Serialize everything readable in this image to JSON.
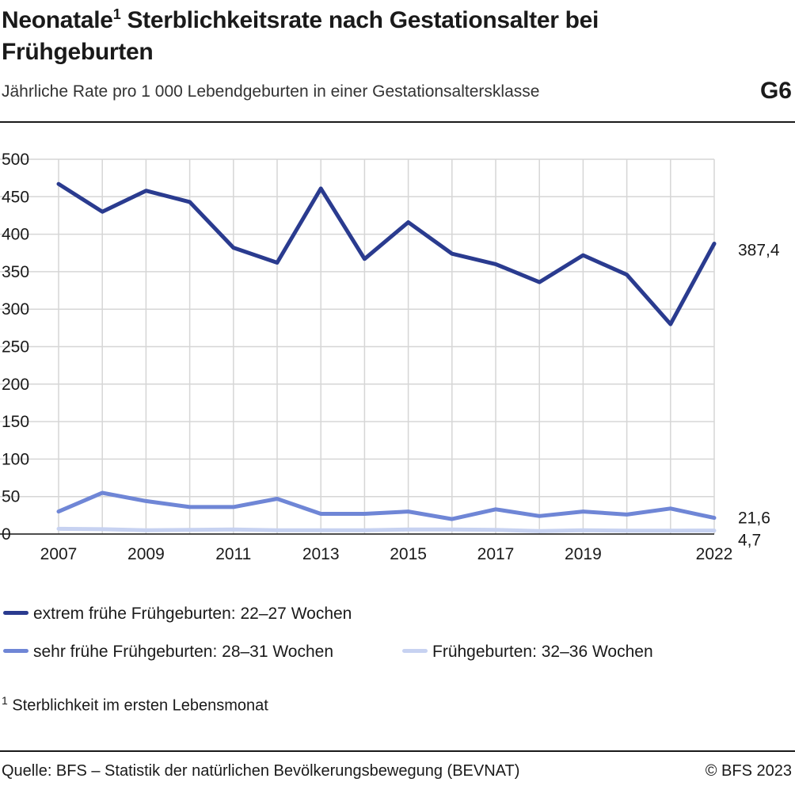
{
  "header": {
    "title": "Neonatale",
    "title_sup": "1",
    "title_rest": " Sterblichkeitsrate nach Gestationsalter bei Frühgeburten",
    "subtitle": "Jährliche Rate pro 1 000 Lebendgeburten in einer Gestationsaltersklasse",
    "badge": "G6"
  },
  "chart_data": {
    "type": "line",
    "title": "Neonatale Sterblichkeitsrate nach Gestationsalter bei Frühgeburten",
    "xlabel": "",
    "ylabel": "",
    "x": [
      2007,
      2008,
      2009,
      2010,
      2011,
      2012,
      2013,
      2014,
      2015,
      2016,
      2017,
      2018,
      2019,
      2020,
      2021,
      2022
    ],
    "x_tick_labels": [
      "2007",
      "2009",
      "2011",
      "2013",
      "2015",
      "2017",
      "2019",
      "2022"
    ],
    "y_ticks": [
      0,
      50,
      100,
      150,
      200,
      250,
      300,
      350,
      400,
      450,
      500
    ],
    "y_tick_labels": [
      "0",
      "50",
      "100",
      "150",
      "200",
      "250",
      "300",
      "350",
      "400",
      "450",
      "500"
    ],
    "ylim": [
      0,
      500
    ],
    "grid": true,
    "legend_position": "bottom",
    "series": [
      {
        "name": "extrem frühe Frühgeburten: 22–27 Wochen",
        "color": "#2a3b8f",
        "values": [
          467,
          430,
          458,
          443,
          382,
          362,
          461,
          367,
          416,
          374,
          360,
          336,
          372,
          346,
          280,
          387.4
        ],
        "end_label": "387,4"
      },
      {
        "name": "sehr frühe Frühgeburten: 28–31 Wochen",
        "color": "#6f86d6",
        "values": [
          30,
          55,
          44,
          36,
          36,
          47,
          27,
          27,
          30,
          20,
          33,
          24,
          30,
          26,
          34,
          21.6
        ],
        "end_label": "21,6"
      },
      {
        "name": "Frühgeburten: 32–36 Wochen",
        "color": "#c7d2f1",
        "values": [
          7,
          6.5,
          5,
          5.5,
          6,
          5,
          5,
          5,
          6,
          6,
          5.5,
          4,
          5,
          4.5,
          4.5,
          4.7
        ],
        "end_label": "4,7"
      }
    ]
  },
  "footnote": {
    "sup": "1",
    "text": "Sterblichkeit im ersten Lebensmonat"
  },
  "source": "Quelle: BFS – Statistik der natürlichen Bevölkerungsbewegung (BEVNAT)",
  "copyright": "© BFS 2023"
}
